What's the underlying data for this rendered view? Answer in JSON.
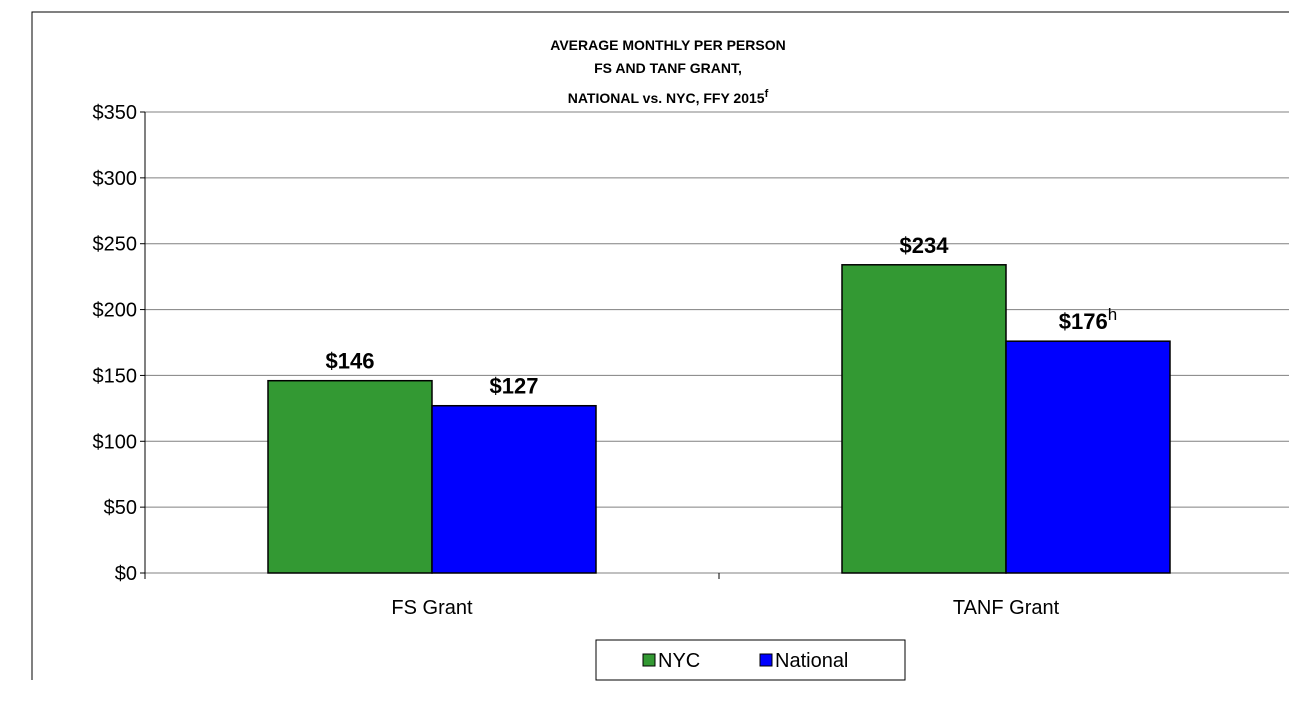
{
  "chart_data": {
    "type": "bar",
    "title": [
      "AVERAGE MONTHLY PER PERSON",
      "FS AND TANF GRANT,",
      "NATIONAL  vs. NYC, FFY 2015"
    ],
    "title_note": "f",
    "categories": [
      "FS Grant",
      "TANF Grant"
    ],
    "series": [
      {
        "name": "NYC",
        "color": "#339933",
        "values": [
          146,
          234
        ],
        "value_labels": [
          "$146",
          "$234"
        ]
      },
      {
        "name": "National",
        "color": "#0000ff",
        "values": [
          127,
          176
        ],
        "value_labels": [
          "$127",
          "$176"
        ],
        "value_label_notes": [
          null,
          "h"
        ]
      }
    ],
    "ylim": [
      0,
      350
    ],
    "yticks": [
      {
        "value": 0,
        "label": "$0"
      },
      {
        "value": 50,
        "label": "$50"
      },
      {
        "value": 100,
        "label": "$100"
      },
      {
        "value": 150,
        "label": "$150"
      },
      {
        "value": 200,
        "label": "$200"
      },
      {
        "value": 250,
        "label": "$250"
      },
      {
        "value": 300,
        "label": "$300"
      },
      {
        "value": 350,
        "label": "$350"
      }
    ],
    "grid": true
  }
}
